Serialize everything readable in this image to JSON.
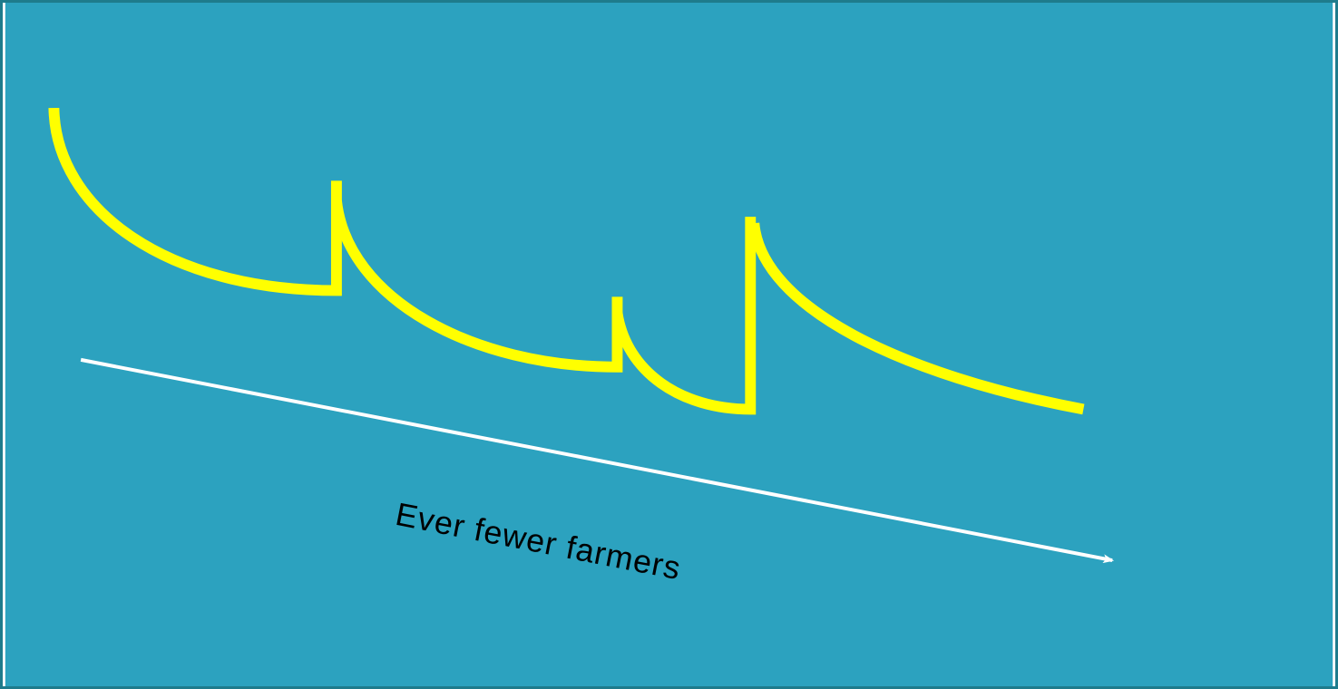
{
  "colors": {
    "background": "#2ca2bf",
    "border": "#1e7b8c",
    "curve": "#ffff00",
    "arrow": "#ffffff",
    "label": "#000000"
  },
  "arrow": {
    "label": "Ever fewer farmers"
  },
  "curve": {
    "segment_count": 4,
    "shape": "sawtooth of decaying curves"
  }
}
